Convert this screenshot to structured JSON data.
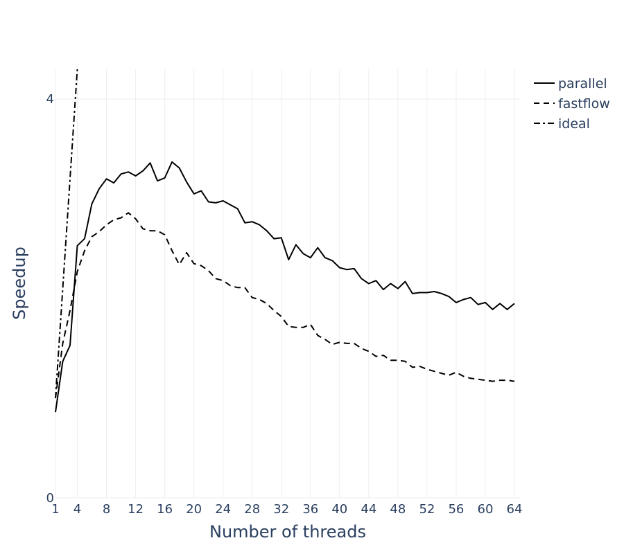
{
  "chart_data": {
    "type": "line",
    "xlabel": "Number of threads",
    "ylabel": "Speedup",
    "xlim": [
      1,
      64
    ],
    "ylim": [
      0,
      4.3
    ],
    "x_ticks": [
      1,
      4,
      8,
      12,
      16,
      20,
      24,
      28,
      32,
      36,
      40,
      44,
      48,
      52,
      56,
      60,
      64
    ],
    "y_ticks": [
      0,
      4
    ],
    "grid": true,
    "legend_position": "top-right",
    "series": [
      {
        "name": "parallel",
        "dash": "solid",
        "x": [
          1,
          2,
          3,
          4,
          5,
          6,
          7,
          8,
          9,
          10,
          11,
          12,
          13,
          14,
          15,
          16,
          17,
          18,
          19,
          20,
          21,
          22,
          23,
          24,
          25,
          26,
          27,
          28,
          29,
          30,
          31,
          32,
          33,
          34,
          35,
          36,
          37,
          38,
          39,
          40,
          41,
          42,
          43,
          44,
          45,
          46,
          47,
          48,
          49,
          50,
          51,
          52,
          53,
          54,
          55,
          56,
          57,
          58,
          59,
          60,
          61,
          62,
          63,
          64
        ],
        "values": [
          0.86,
          1.37,
          1.53,
          2.53,
          2.6,
          2.95,
          3.1,
          3.2,
          3.16,
          3.25,
          3.27,
          3.23,
          3.28,
          3.36,
          3.18,
          3.21,
          3.37,
          3.31,
          3.17,
          3.05,
          3.08,
          2.97,
          2.96,
          2.98,
          2.94,
          2.9,
          2.76,
          2.77,
          2.74,
          2.68,
          2.6,
          2.61,
          2.39,
          2.54,
          2.45,
          2.41,
          2.51,
          2.41,
          2.38,
          2.31,
          2.29,
          2.3,
          2.2,
          2.15,
          2.18,
          2.09,
          2.15,
          2.1,
          2.17,
          2.05,
          2.06,
          2.06,
          2.07,
          2.05,
          2.02,
          1.96,
          1.99,
          2.01,
          1.94,
          1.96,
          1.89,
          1.95,
          1.89,
          1.95
        ]
      },
      {
        "name": "fastflow",
        "dash": "dash",
        "x": [
          1,
          2,
          3,
          4,
          5,
          6,
          7,
          8,
          9,
          10,
          11,
          12,
          13,
          14,
          15,
          16,
          17,
          18,
          19,
          20,
          21,
          22,
          23,
          24,
          25,
          26,
          27,
          28,
          29,
          30,
          31,
          32,
          33,
          34,
          35,
          36,
          37,
          38,
          39,
          40,
          41,
          42,
          43,
          44,
          45,
          46,
          47,
          48,
          49,
          50,
          51,
          52,
          53,
          54,
          55,
          56,
          57,
          58,
          59,
          60,
          61,
          62,
          63,
          64
        ],
        "values": [
          1.0,
          1.55,
          1.88,
          2.27,
          2.48,
          2.62,
          2.67,
          2.74,
          2.79,
          2.81,
          2.86,
          2.8,
          2.7,
          2.68,
          2.68,
          2.64,
          2.48,
          2.34,
          2.46,
          2.35,
          2.33,
          2.28,
          2.2,
          2.18,
          2.13,
          2.11,
          2.11,
          2.01,
          1.99,
          1.95,
          1.88,
          1.82,
          1.72,
          1.71,
          1.71,
          1.74,
          1.63,
          1.59,
          1.54,
          1.56,
          1.55,
          1.55,
          1.5,
          1.47,
          1.42,
          1.43,
          1.38,
          1.38,
          1.37,
          1.31,
          1.32,
          1.29,
          1.27,
          1.25,
          1.23,
          1.26,
          1.22,
          1.2,
          1.19,
          1.18,
          1.17,
          1.18,
          1.18,
          1.17
        ]
      },
      {
        "name": "ideal",
        "dash": "dashdot",
        "x": [
          1,
          4
        ],
        "values": [
          1,
          4.3
        ]
      }
    ]
  }
}
